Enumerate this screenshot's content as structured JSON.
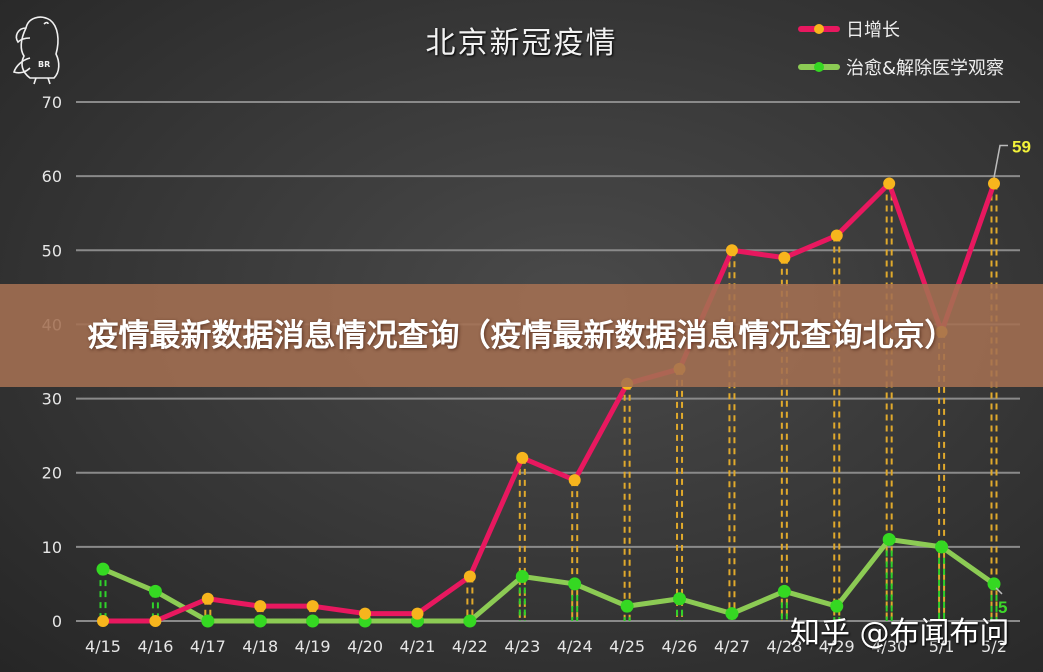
{
  "chart": {
    "title": "北京新冠疫情",
    "legend": [
      {
        "label": "日增长",
        "line_color": "#e8185f",
        "marker_color": "#f7b51d"
      },
      {
        "label": "治愈&解除医学观察",
        "line_color": "#8ccb54",
        "marker_color": "#35d822"
      }
    ],
    "annotations": {
      "peak_label": "59",
      "last_recovered_label": "5"
    }
  },
  "banner": {
    "text": "疫情最新数据消息情况查询（疫情最新数据消息情况查询北京）"
  },
  "watermark": {
    "text": "知乎 @布闻布问"
  },
  "logo": {
    "text": "BR"
  },
  "chart_data": {
    "type": "line",
    "title": "北京新冠疫情",
    "xlabel": "",
    "ylabel": "",
    "categories": [
      "4/15",
      "4/16",
      "4/17",
      "4/18",
      "4/19",
      "4/20",
      "4/21",
      "4/22",
      "4/23",
      "4/24",
      "4/25",
      "4/26",
      "4/27",
      "4/28",
      "4/29",
      "4/30",
      "5/1",
      "5/2"
    ],
    "series": [
      {
        "name": "日增长",
        "color": "#e8185f",
        "values": [
          0,
          0,
          3,
          2,
          2,
          1,
          1,
          6,
          22,
          19,
          32,
          34,
          50,
          49,
          52,
          59,
          39,
          59
        ]
      },
      {
        "name": "治愈&解除医学观察",
        "color": "#8ccb54",
        "values": [
          7,
          4,
          0,
          0,
          0,
          0,
          0,
          0,
          6,
          5,
          2,
          3,
          1,
          4,
          2,
          11,
          10,
          5
        ]
      }
    ],
    "ylim": [
      0,
      70
    ],
    "yticks": [
      0,
      10,
      20,
      30,
      40,
      50,
      60,
      70
    ],
    "grid": true,
    "legend_position": "top-right",
    "data_labels": [
      {
        "series": "日增长",
        "category": "5/2",
        "value": 59
      },
      {
        "series": "治愈&解除医学观察",
        "category": "5/2",
        "value": 5
      }
    ]
  }
}
